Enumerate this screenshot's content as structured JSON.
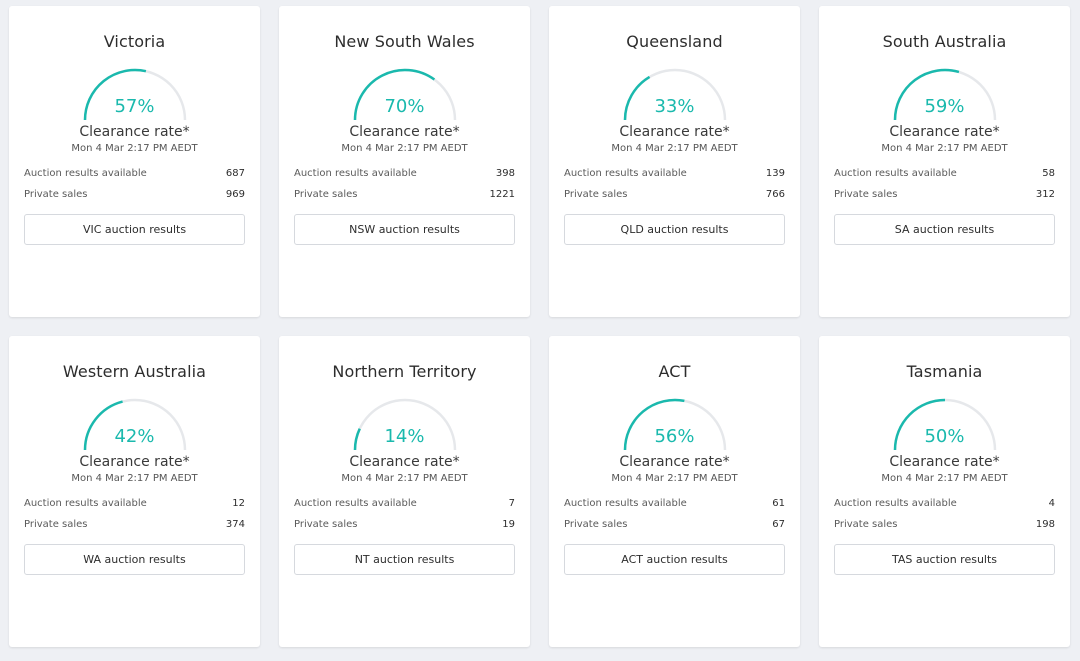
{
  "accent_color": "#1ab9ad",
  "track_color": "#e6e8eb",
  "cards": [
    {
      "state": "Victoria",
      "rate_value": 57,
      "rate_text": "57%",
      "label": "Clearance rate*",
      "date": "Mon 4 Mar 2:17 PM AEDT",
      "auction_label": "Auction results available",
      "auction_value": "687",
      "private_label": "Private sales",
      "private_value": "969",
      "button": "VIC auction results"
    },
    {
      "state": "New South Wales",
      "rate_value": 70,
      "rate_text": "70%",
      "label": "Clearance rate*",
      "date": "Mon 4 Mar 2:17 PM AEDT",
      "auction_label": "Auction results available",
      "auction_value": "398",
      "private_label": "Private sales",
      "private_value": "1221",
      "button": "NSW auction results"
    },
    {
      "state": "Queensland",
      "rate_value": 33,
      "rate_text": "33%",
      "label": "Clearance rate*",
      "date": "Mon 4 Mar 2:17 PM AEDT",
      "auction_label": "Auction results available",
      "auction_value": "139",
      "private_label": "Private sales",
      "private_value": "766",
      "button": "QLD auction results"
    },
    {
      "state": "South Australia",
      "rate_value": 59,
      "rate_text": "59%",
      "label": "Clearance rate*",
      "date": "Mon 4 Mar 2:17 PM AEDT",
      "auction_label": "Auction results available",
      "auction_value": "58",
      "private_label": "Private sales",
      "private_value": "312",
      "button": "SA auction results"
    },
    {
      "state": "Western Australia",
      "rate_value": 42,
      "rate_text": "42%",
      "label": "Clearance rate*",
      "date": "Mon 4 Mar 2:17 PM AEDT",
      "auction_label": "Auction results available",
      "auction_value": "12",
      "private_label": "Private sales",
      "private_value": "374",
      "button": "WA auction results"
    },
    {
      "state": "Northern Territory",
      "rate_value": 14,
      "rate_text": "14%",
      "label": "Clearance rate*",
      "date": "Mon 4 Mar 2:17 PM AEDT",
      "auction_label": "Auction results available",
      "auction_value": "7",
      "private_label": "Private sales",
      "private_value": "19",
      "button": "NT auction results"
    },
    {
      "state": "ACT",
      "rate_value": 56,
      "rate_text": "56%",
      "label": "Clearance rate*",
      "date": "Mon 4 Mar 2:17 PM AEDT",
      "auction_label": "Auction results available",
      "auction_value": "61",
      "private_label": "Private sales",
      "private_value": "67",
      "button": "ACT auction results"
    },
    {
      "state": "Tasmania",
      "rate_value": 50,
      "rate_text": "50%",
      "label": "Clearance rate*",
      "date": "Mon 4 Mar 2:17 PM AEDT",
      "auction_label": "Auction results available",
      "auction_value": "4",
      "private_label": "Private sales",
      "private_value": "198",
      "button": "TAS auction results"
    }
  ]
}
